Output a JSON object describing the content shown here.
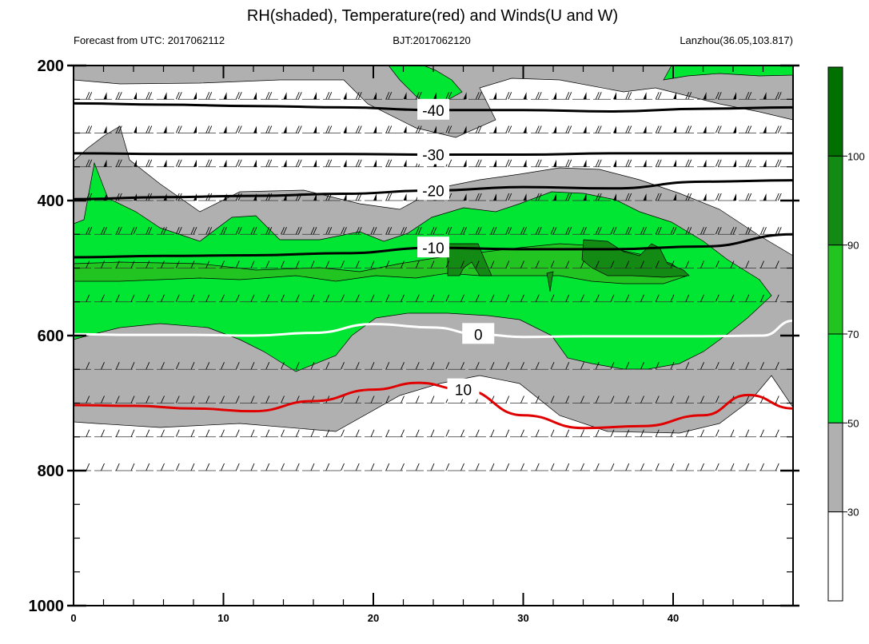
{
  "header": {
    "title": "RH(shaded), Temperature(red) and Winds(U and W)",
    "left": "Forecast from UTC: 2017062112",
    "center": "BJT:2017062120",
    "right": "Lanzhou(36.05,103.817)"
  },
  "chart_data": {
    "type": "contour",
    "title": "RH(shaded), Temperature(red) and Winds(U and W)",
    "xlabel": "",
    "ylabel": "",
    "xlim": [
      0,
      48
    ],
    "ylim": [
      1000,
      200
    ],
    "x_ticks": [
      0,
      10,
      20,
      30,
      40
    ],
    "y_ticks": [
      200,
      400,
      600,
      800,
      1000
    ],
    "colorbar": {
      "levels": [
        30,
        50,
        70,
        90,
        100
      ],
      "labels": [
        "30",
        "50",
        "70",
        "90",
        "100"
      ],
      "colors": [
        "#ffffff",
        "#b0b0b0",
        "#00e632",
        "#22c422",
        "#138a13",
        "#007000"
      ]
    },
    "temperature_contours": [
      {
        "value": -40,
        "label": "-40",
        "color": "#000000",
        "points": [
          [
            0,
            256
          ],
          [
            6,
            258
          ],
          [
            12,
            260
          ],
          [
            18,
            262
          ],
          [
            24,
            266
          ],
          [
            30,
            266
          ],
          [
            36,
            268
          ],
          [
            42,
            264
          ],
          [
            48,
            262
          ]
        ]
      },
      {
        "value": -30,
        "label": "-30",
        "color": "#000000",
        "points": [
          [
            0,
            330
          ],
          [
            6,
            331
          ],
          [
            12,
            331
          ],
          [
            18,
            331
          ],
          [
            24,
            332
          ],
          [
            30,
            332
          ],
          [
            36,
            330
          ],
          [
            42,
            330
          ],
          [
            48,
            330
          ]
        ]
      },
      {
        "value": -20,
        "label": "-20",
        "color": "#000000",
        "points": [
          [
            0,
            398
          ],
          [
            6,
            395
          ],
          [
            12,
            393
          ],
          [
            18,
            390
          ],
          [
            24,
            385
          ],
          [
            30,
            380
          ],
          [
            36,
            382
          ],
          [
            42,
            372
          ],
          [
            48,
            370
          ]
        ]
      },
      {
        "value": -10,
        "label": "-10",
        "color": "#000000",
        "points": [
          [
            0,
            484
          ],
          [
            6,
            482
          ],
          [
            12,
            481
          ],
          [
            18,
            478
          ],
          [
            24,
            470
          ],
          [
            30,
            472
          ],
          [
            36,
            472
          ],
          [
            42,
            468
          ],
          [
            48,
            450
          ]
        ]
      },
      {
        "value": 0,
        "label": "0",
        "color": "#ffffff",
        "points": [
          [
            0,
            598
          ],
          [
            4,
            599
          ],
          [
            8,
            599
          ],
          [
            12,
            600
          ],
          [
            16,
            596
          ],
          [
            20,
            583
          ],
          [
            24,
            588
          ],
          [
            27,
            598
          ],
          [
            30,
            602
          ],
          [
            34,
            601
          ],
          [
            38,
            601
          ],
          [
            42,
            601
          ],
          [
            46,
            600
          ],
          [
            48,
            578
          ]
        ]
      },
      {
        "value": 10,
        "label": "10",
        "color": "#e00000",
        "points": [
          [
            0,
            703
          ],
          [
            4,
            704
          ],
          [
            8,
            708
          ],
          [
            12,
            712
          ],
          [
            16,
            697
          ],
          [
            20,
            680
          ],
          [
            23,
            670
          ],
          [
            26,
            680
          ],
          [
            30,
            718
          ],
          [
            34,
            737
          ],
          [
            38,
            734
          ],
          [
            42,
            718
          ],
          [
            45,
            688
          ],
          [
            48,
            708
          ]
        ]
      }
    ],
    "wind_levels": [
      250,
      300,
      350,
      400,
      450,
      500,
      550,
      650,
      700,
      750,
      800
    ]
  }
}
